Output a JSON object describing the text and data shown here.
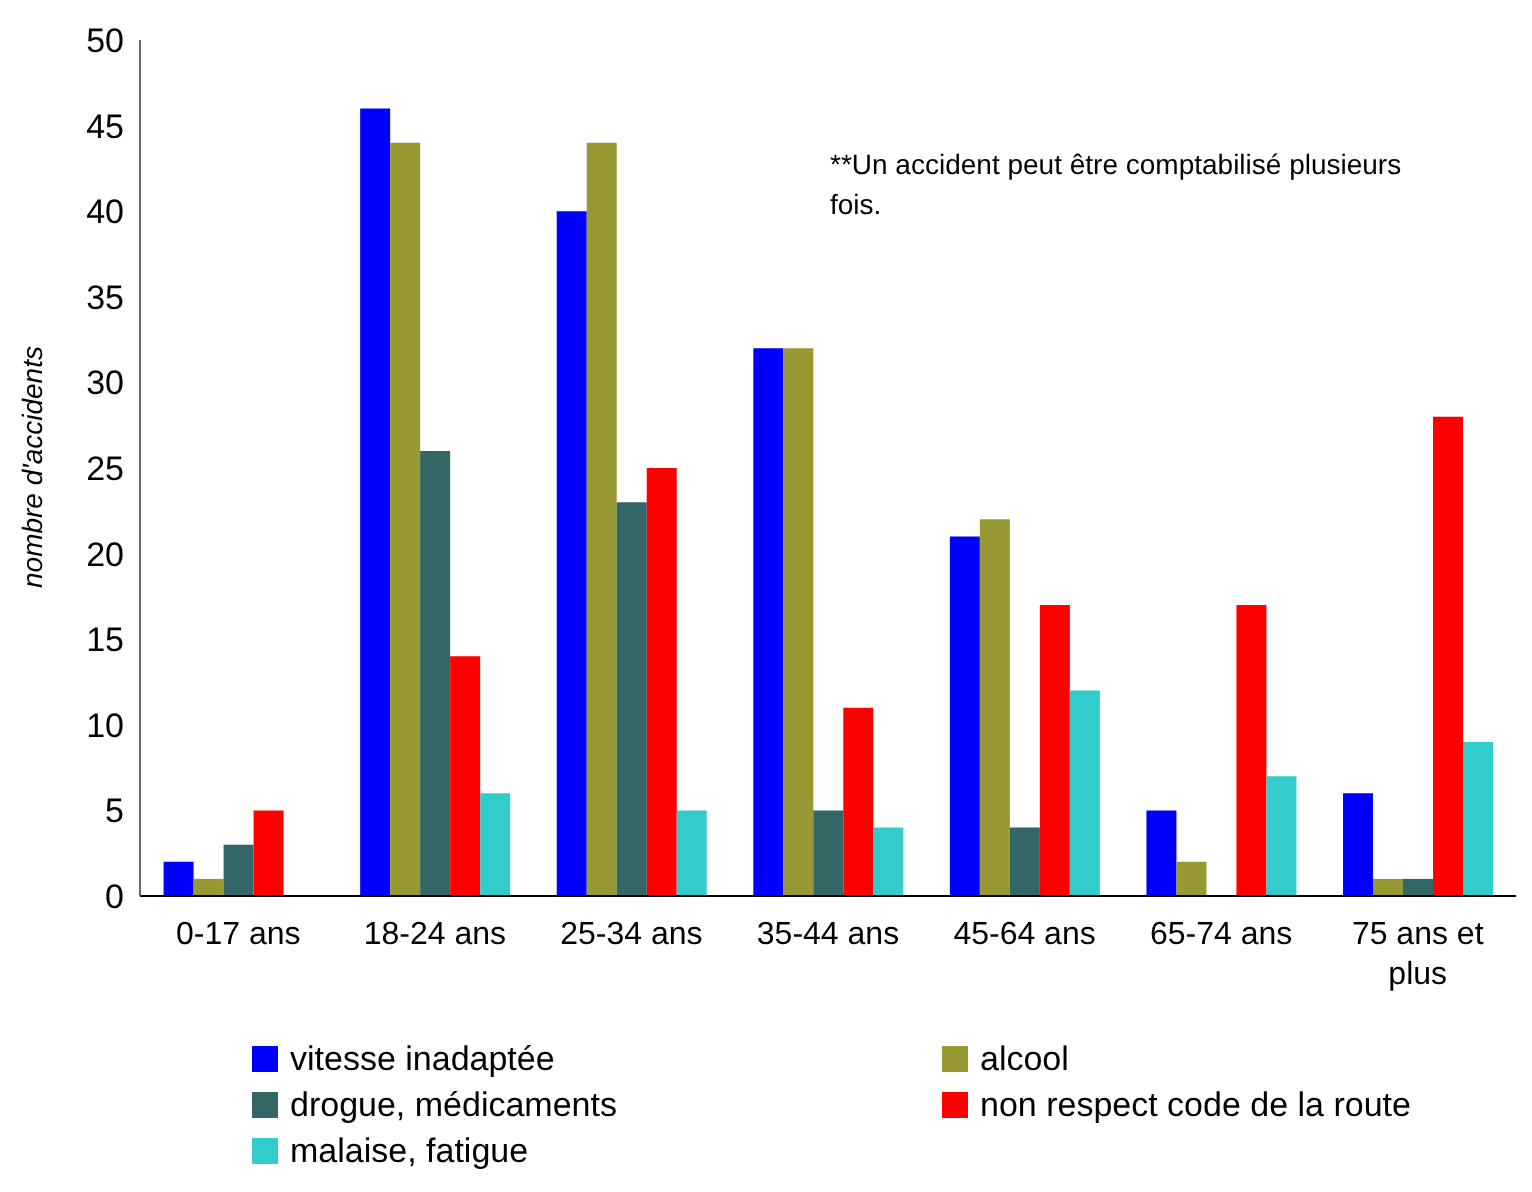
{
  "chart_data": {
    "type": "bar",
    "ylabel": "nombre d'accidents",
    "annotations": [
      "**Un accident peut être comptabilisé plusieurs fois."
    ],
    "categories": [
      "0-17 ans",
      "18-24 ans",
      "25-34 ans",
      "35-44 ans",
      "45-64 ans",
      "65-74 ans",
      "75 ans et plus"
    ],
    "series": [
      {
        "name": "vitesse inadaptée",
        "color": "#0000ff",
        "values": [
          2,
          46,
          40,
          32,
          21,
          5,
          6
        ]
      },
      {
        "name": "alcool",
        "color": "#999933",
        "values": [
          1,
          44,
          44,
          32,
          22,
          2,
          1
        ]
      },
      {
        "name": "drogue, médicaments",
        "color": "#336666",
        "values": [
          3,
          26,
          23,
          5,
          4,
          null,
          1
        ]
      },
      {
        "name": "non respect code de la route",
        "color": "#ff0000",
        "values": [
          5,
          14,
          25,
          11,
          17,
          17,
          28
        ]
      },
      {
        "name": "malaise, fatigue",
        "color": "#33cccc",
        "values": [
          null,
          6,
          5,
          4,
          12,
          7,
          9
        ]
      }
    ],
    "ylim": [
      0,
      50
    ],
    "yticks": [
      0,
      5,
      10,
      15,
      20,
      25,
      30,
      35,
      40,
      45,
      50
    ],
    "grid": false,
    "legend": "bottom"
  }
}
